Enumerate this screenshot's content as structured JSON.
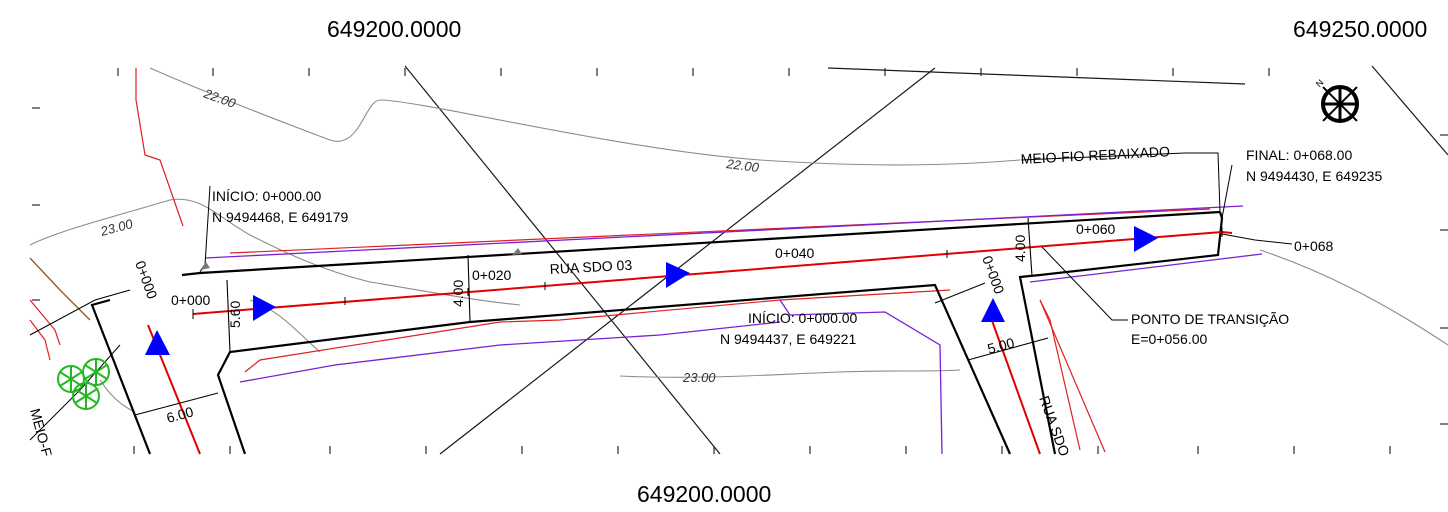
{
  "grid_labels": {
    "top_left": "649200.0000",
    "top_right": "649250.0000",
    "bottom": "649200.0000"
  },
  "contours": {
    "c22_a": "22.00",
    "c22_b": "22.00",
    "c23_a": "23.00",
    "c23_b": "23.00"
  },
  "street": {
    "name": "RUA SDO 03",
    "cross_street": "RUA SDO",
    "curb_note": "MEIO-FIO REBAIXADO",
    "curb_note_left": "MEIO-F"
  },
  "start_main": {
    "line1": "INÍCIO: 0+000.00",
    "line2": "N 9494468, E 649179"
  },
  "start_cross": {
    "line1": "INÍCIO: 0+000.00",
    "line2": "N 9494437, E 649221"
  },
  "end_main": {
    "line1": "FINAL: 0+068.00",
    "line2": "N 9494430, E 649235"
  },
  "transition": {
    "line1": "PONTO DE TRANSIÇÃO",
    "line2": "E=0+056.00"
  },
  "stations": {
    "s0": "0+000",
    "s20": "0+020",
    "s40": "0+040",
    "s60": "0+060",
    "s68": "0+068",
    "left_vertical": "0+000",
    "cross_vertical": "0+000"
  },
  "widths": {
    "w560": "5.60",
    "w400a": "4.00",
    "w400b": "4.00",
    "w600": "6.00",
    "w500": "5.00"
  },
  "colors": {
    "centerline": "#e00000",
    "edge": "#000000",
    "lot_red": "#e02020",
    "lot_purple": "#7a1fd6",
    "contour": "#8c8c8c",
    "arrow": "#0000ff",
    "tree": "#22b822",
    "brown": "#8b5a2b"
  },
  "icons": {
    "north": "north-arrow-icon",
    "tree": "tree-icon",
    "direction": "direction-arrow-icon"
  }
}
